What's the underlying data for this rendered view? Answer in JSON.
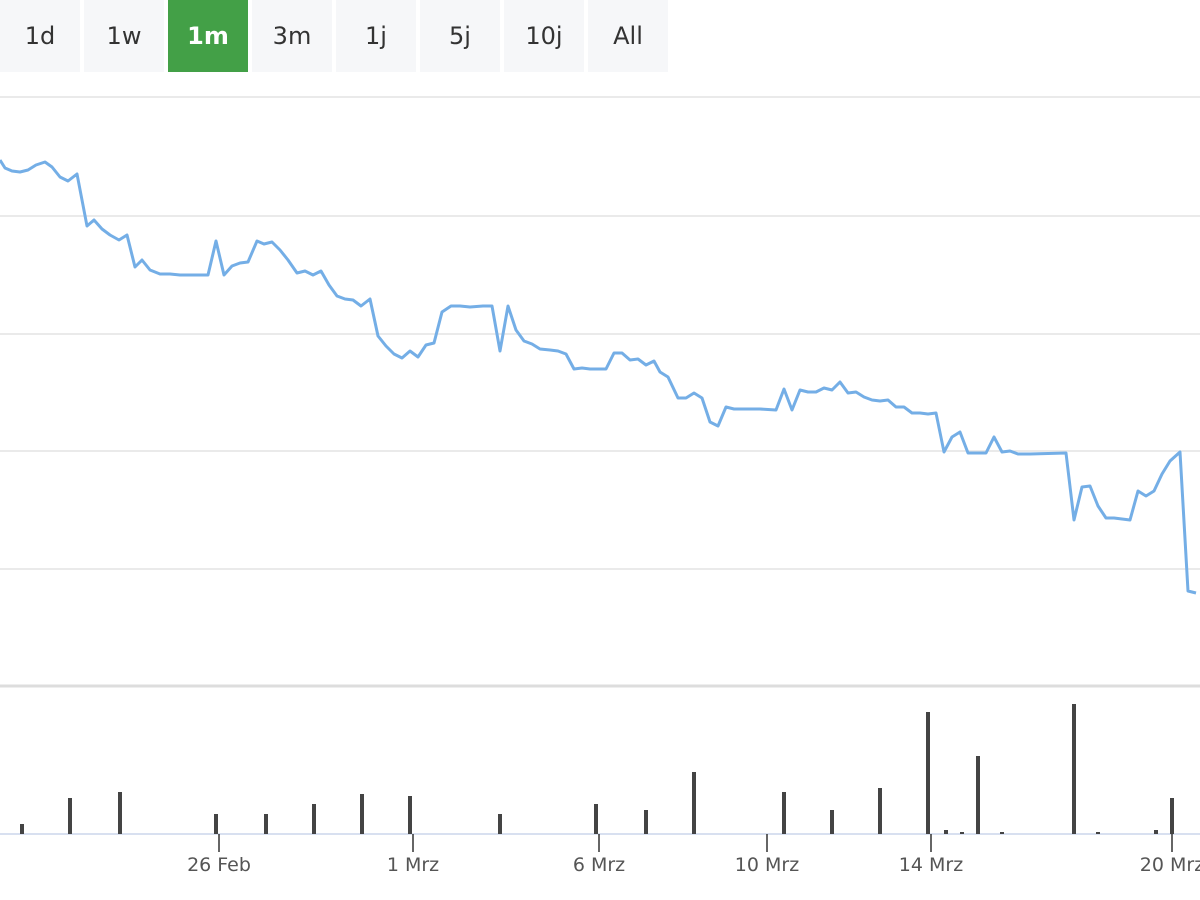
{
  "range_buttons": [
    "1d",
    "1w",
    "1m",
    "3m",
    "1j",
    "5j",
    "10j",
    "All"
  ],
  "active_button": 2,
  "chart_data": [
    {
      "type": "line",
      "color": "#74aee6",
      "grid": true,
      "xlim": [
        0,
        1200
      ],
      "ylim": [
        0,
        589
      ],
      "yticks": [
        0,
        117,
        235,
        352,
        470,
        589
      ],
      "x": [
        0,
        5,
        12,
        20,
        28,
        36,
        45,
        52,
        60,
        68,
        77,
        87,
        94,
        102,
        110,
        119,
        127,
        135,
        142,
        150,
        160,
        170,
        180,
        200,
        208,
        216,
        224,
        232,
        240,
        248,
        257,
        264,
        272,
        280,
        288,
        297,
        305,
        313,
        321,
        329,
        337,
        345,
        353,
        361,
        370,
        378,
        386,
        394,
        402,
        410,
        418,
        426,
        434,
        442,
        451,
        460,
        470,
        483,
        492,
        500,
        508,
        516,
        524,
        532,
        540,
        550,
        558,
        566,
        574,
        582,
        590,
        598,
        606,
        614,
        622,
        630,
        638,
        646,
        654,
        660,
        668,
        678,
        686,
        694,
        702,
        710,
        718,
        726,
        734,
        760,
        776,
        784,
        792,
        800,
        808,
        816,
        824,
        832,
        840,
        848,
        856,
        864,
        872,
        880,
        888,
        896,
        904,
        912,
        920,
        928,
        936,
        944,
        952,
        960,
        968,
        986,
        994,
        1002,
        1010,
        1018,
        1030,
        1066,
        1074,
        1082,
        1090,
        1098,
        1106,
        1114,
        1122,
        1130,
        1138,
        1146,
        1154,
        1162,
        1170,
        1180,
        1188,
        1196
      ],
      "values": [
        526,
        518,
        515,
        514,
        516,
        521,
        524,
        519,
        509,
        505,
        512,
        460,
        466,
        457,
        451,
        446,
        451,
        419,
        426,
        416,
        412,
        412,
        411,
        411,
        411,
        445,
        411,
        420,
        423,
        424,
        445,
        442,
        444,
        436,
        426,
        413,
        415,
        411,
        415,
        401,
        390,
        387,
        386,
        380,
        387,
        350,
        340,
        332,
        328,
        335,
        329,
        341,
        343,
        374,
        380,
        380,
        379,
        380,
        380,
        335,
        380,
        356,
        345,
        342,
        337,
        336,
        335,
        332,
        317,
        318,
        317,
        317,
        317,
        333,
        333,
        326,
        327,
        321,
        325,
        314,
        309,
        288,
        288,
        293,
        288,
        264,
        260,
        279,
        277,
        277,
        276,
        297,
        276,
        296,
        294,
        294,
        298,
        296,
        304,
        293,
        294,
        289,
        286,
        285,
        286,
        279,
        279,
        273,
        273,
        272,
        273,
        234,
        249,
        254,
        233,
        233,
        249,
        234,
        235,
        232,
        232,
        233,
        166,
        199,
        200,
        180,
        168,
        168,
        167,
        166,
        195,
        190,
        195,
        212,
        225,
        234,
        95,
        93
      ]
    },
    {
      "type": "bar",
      "color": "#444444",
      "xlim": [
        0,
        1200
      ],
      "ylim": [
        0,
        148
      ],
      "xticks": [
        {
          "value": 219,
          "label": "26 Feb"
        },
        {
          "value": 413,
          "label": "1 Mrz"
        },
        {
          "value": 599,
          "label": "6 Mrz"
        },
        {
          "value": 767,
          "label": "10 Mrz"
        },
        {
          "value": 931,
          "label": "14 Mrz"
        },
        {
          "value": 1172,
          "label": "20 Mrz"
        }
      ],
      "x": [
        22,
        70,
        120,
        216,
        266,
        314,
        362,
        410,
        500,
        596,
        646,
        694,
        784,
        832,
        880,
        928,
        946,
        962,
        978,
        1002,
        1074,
        1098,
        1156,
        1172
      ],
      "values": [
        10,
        36,
        42,
        20,
        20,
        30,
        40,
        38,
        20,
        30,
        24,
        62,
        42,
        24,
        46,
        122,
        4,
        2,
        78,
        2,
        130,
        2,
        4,
        36
      ]
    }
  ]
}
